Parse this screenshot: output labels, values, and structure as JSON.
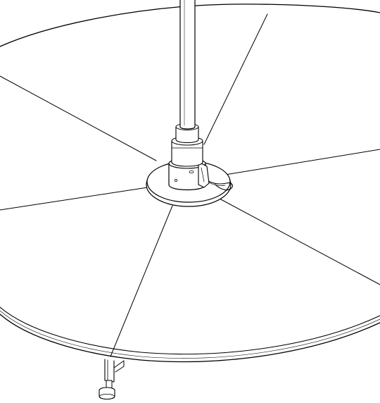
{
  "figure": {
    "subject": "",
    "components": [
      {
        "name": "disc-top",
        "icon": "disc-icon"
      },
      {
        "name": "segment-seams",
        "count": 6
      },
      {
        "name": "center-hub-flange",
        "icon": "flange-icon"
      },
      {
        "name": "hub-clamp-housing",
        "icon": "clamp-icon"
      },
      {
        "name": "locking-lever",
        "icon": "lever-icon"
      },
      {
        "name": "tether-cable",
        "icon": "cable-icon"
      },
      {
        "name": "vertical-pole",
        "icon": "pole-icon"
      },
      {
        "name": "leg-bracket",
        "icon": "bracket-icon"
      },
      {
        "name": "leveling-foot",
        "icon": "foot-icon"
      }
    ],
    "colors": {
      "ink": "#000000",
      "paper": "#ffffff"
    }
  }
}
